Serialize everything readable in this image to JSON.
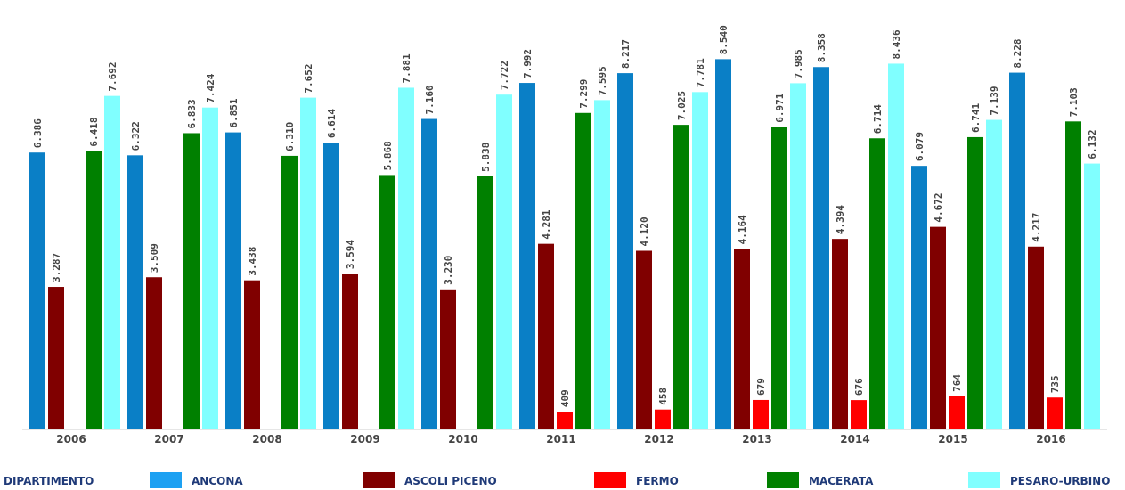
{
  "chart_data": {
    "type": "bar",
    "categories": [
      "2006",
      "2007",
      "2008",
      "2009",
      "2010",
      "2011",
      "2012",
      "2013",
      "2014",
      "2015",
      "2016"
    ],
    "series": [
      {
        "name": "ANCONA",
        "color": "#0a7fc6",
        "legend_color": "#1da1f2",
        "values": [
          6386,
          6322,
          6851,
          6614,
          7160,
          7992,
          8217,
          8540,
          8358,
          6079,
          8228
        ],
        "labels": [
          "6.386",
          "6.322",
          "6.851",
          "6.614",
          "7.160",
          "7.992",
          "8.217",
          "8.540",
          "8.358",
          "6.079",
          "8.228"
        ]
      },
      {
        "name": "ASCOLI PICENO",
        "color": "#800000",
        "legend_color": "#800000",
        "values": [
          3287,
          3509,
          3438,
          3594,
          3230,
          4281,
          4120,
          4164,
          4394,
          4672,
          4217
        ],
        "labels": [
          "3.287",
          "3.509",
          "3.438",
          "3.594",
          "3.230",
          "4.281",
          "4.120",
          "4.164",
          "4.394",
          "4.672",
          "4.217"
        ]
      },
      {
        "name": "FERMO",
        "color": "#ff0000",
        "legend_color": "#ff0000",
        "values": [
          null,
          null,
          null,
          null,
          null,
          409,
          458,
          679,
          676,
          764,
          735
        ],
        "labels": [
          "",
          "",
          "",
          "",
          "",
          "409",
          "458",
          "679",
          "676",
          "764",
          "735"
        ]
      },
      {
        "name": "MACERATA",
        "color": "#008000",
        "legend_color": "#008000",
        "values": [
          6418,
          6833,
          6310,
          5868,
          5838,
          7299,
          7025,
          6971,
          6714,
          6741,
          7103
        ],
        "labels": [
          "6.418",
          "6.833",
          "6.310",
          "5.868",
          "5.838",
          "7.299",
          "7.025",
          "6.971",
          "6.714",
          "6.741",
          "7.103"
        ]
      },
      {
        "name": "PESARO-URBINO",
        "color": "#80ffff",
        "legend_color": "#80ffff",
        "values": [
          7692,
          7424,
          7652,
          7881,
          7722,
          7595,
          7781,
          7985,
          8436,
          7139,
          6132
        ],
        "labels": [
          "7.692",
          "7.424",
          "7.652",
          "7.881",
          "7.722",
          "7.595",
          "7.781",
          "7.985",
          "8.436",
          "7.139",
          "6.132"
        ]
      }
    ],
    "legend_title": "DIPARTIMENTO",
    "title": "",
    "xlabel": "",
    "ylabel": "",
    "ylim": [
      0,
      9000
    ],
    "grid": false,
    "legend_position": "bottom"
  }
}
